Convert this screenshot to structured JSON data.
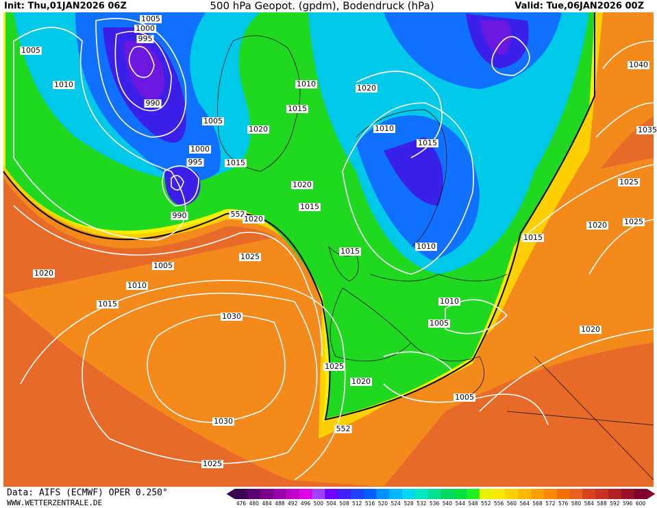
{
  "header": {
    "init": "Init: Thu,01JAN2026 06Z",
    "title": "500 hPa Geopot. (gpdm), Bodendruck (hPa)",
    "valid": "Valid: Tue,06JAN2026 00Z"
  },
  "isobar_labels": [
    1005,
    1000,
    995,
    1005,
    1010,
    990,
    1005,
    1000,
    995,
    990,
    1010,
    1015,
    1020,
    1015,
    1020,
    1015,
    552,
    1020,
    1020,
    1010,
    1015,
    1010,
    1015,
    1025,
    1005,
    1020,
    1010,
    1015,
    1010,
    1005,
    1030,
    1025,
    1020,
    1030,
    552,
    1025,
    1005,
    1040,
    1035,
    1025,
    1020,
    1025,
    1015,
    1020
  ],
  "legend": {
    "values": [
      476,
      480,
      484,
      488,
      492,
      496,
      500,
      504,
      508,
      512,
      516,
      520,
      524,
      528,
      532,
      536,
      540,
      544,
      548,
      552,
      556,
      560,
      564,
      568,
      572,
      576,
      580,
      584,
      588,
      592,
      596,
      600
    ],
    "colors": [
      "#3a0050",
      "#5a0070",
      "#7a008a",
      "#9a00a8",
      "#c000c8",
      "#e000e8",
      "#a040ff",
      "#7000ff",
      "#4020ff",
      "#2040ff",
      "#0060ff",
      "#0090ff",
      "#00b8ff",
      "#00d8f0",
      "#00e8c0",
      "#00e090",
      "#00d860",
      "#00e040",
      "#20f020",
      "#e8f000",
      "#ffe800",
      "#ffd000",
      "#ffb800",
      "#ffa000",
      "#ff8800",
      "#f07000",
      "#e86020",
      "#d84020",
      "#c83020",
      "#b02020",
      "#981028",
      "#800030"
    ]
  },
  "footer": {
    "source": "Data: AIFS (ECMWF) OPER 0.250°",
    "site": "WWW.WETTERZENTRALE.DE"
  }
}
